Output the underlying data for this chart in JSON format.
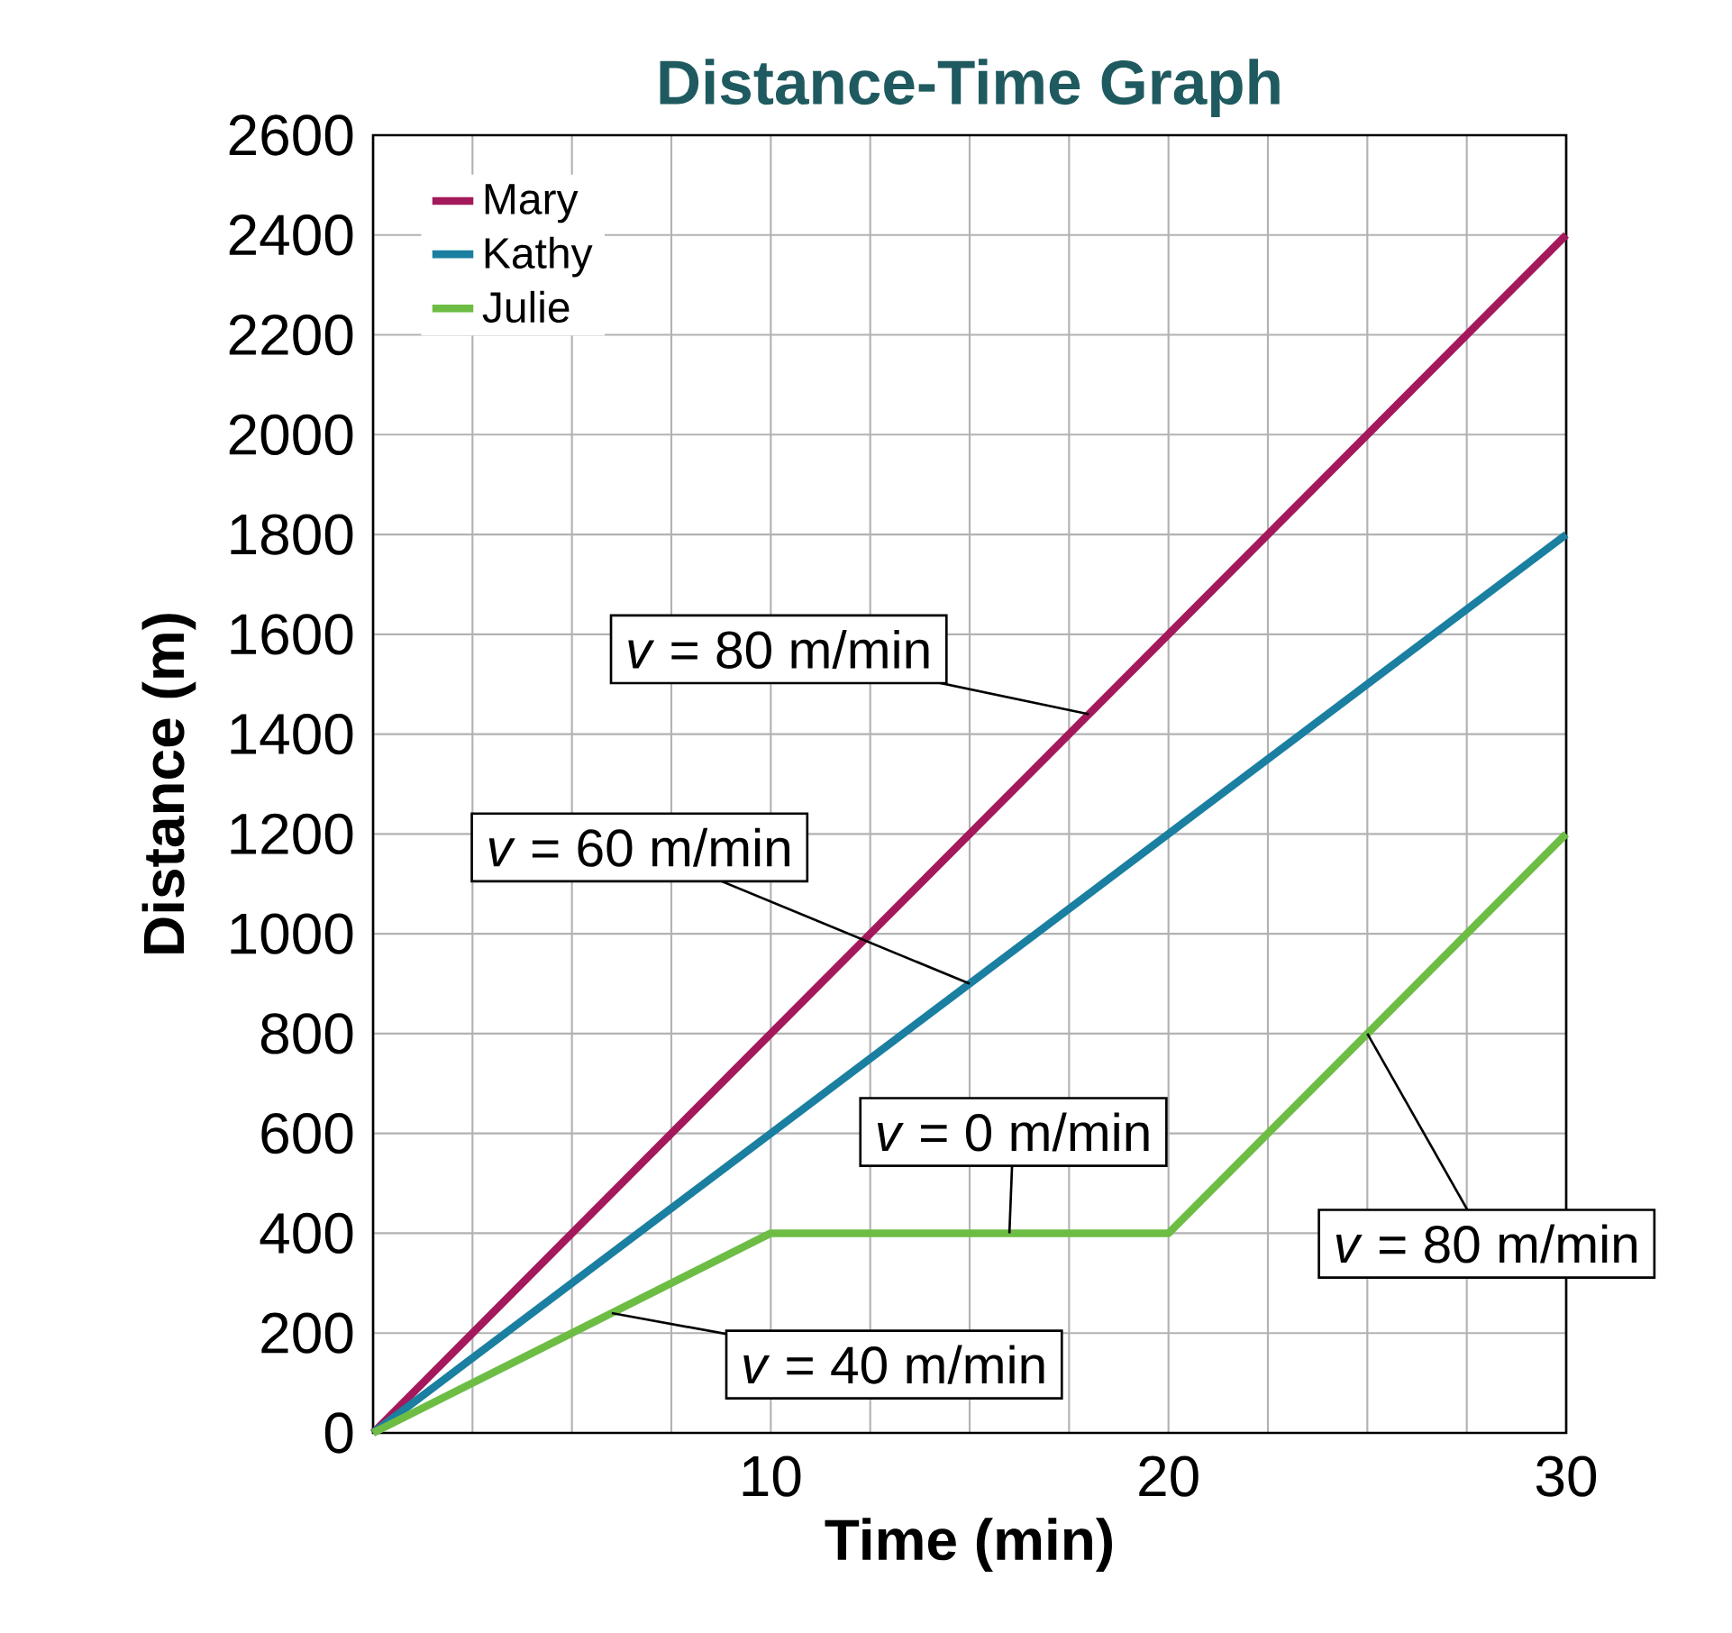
{
  "chart_data": {
    "type": "line",
    "title": "Distance-Time Graph",
    "xlabel": "Time (min)",
    "ylabel": "Distance (m)",
    "xlim": [
      0,
      30
    ],
    "ylim": [
      0,
      2600
    ],
    "xticks": [
      {
        "value": 0,
        "label": null
      },
      {
        "value": 2.5,
        "label": null
      },
      {
        "value": 5,
        "label": null
      },
      {
        "value": 7.5,
        "label": null
      },
      10,
      {
        "value": 12.5,
        "label": null
      },
      {
        "value": 15,
        "label": null
      },
      {
        "value": 17.5,
        "label": null
      },
      20,
      {
        "value": 22.5,
        "label": null
      },
      {
        "value": 25,
        "label": null
      },
      {
        "value": 27.5,
        "label": null
      },
      30
    ],
    "yticks": [
      0,
      200,
      400,
      600,
      800,
      1000,
      1200,
      1400,
      1600,
      1800,
      2000,
      2200,
      2400,
      2600
    ],
    "grid": true,
    "legend": "top left",
    "series": [
      {
        "name": "Mary",
        "color": "#a3195b",
        "x": [
          0,
          30
        ],
        "values": [
          0,
          2400
        ]
      },
      {
        "name": "Kathy",
        "color": "#1a7fa0",
        "x": [
          0,
          30
        ],
        "values": [
          0,
          1800
        ]
      },
      {
        "name": "Julie",
        "color": "#6dbd45",
        "x": [
          0,
          10,
          20,
          30
        ],
        "values": [
          0,
          400,
          400,
          1200
        ]
      }
    ],
    "annotations": [
      {
        "text": "*v* = 80 m/min",
        "x": 18,
        "y": 1440
      },
      {
        "text": "*v* = 60 m/min",
        "x": 15,
        "y": 900
      },
      {
        "text": "*v* = 0 m/min",
        "x": 16,
        "y": 400
      },
      {
        "text": "*v* = 80 m/min",
        "x": 25,
        "y": 800
      },
      {
        "text": "*v* = 40 m/min",
        "x": 6,
        "y": 240
      }
    ]
  }
}
